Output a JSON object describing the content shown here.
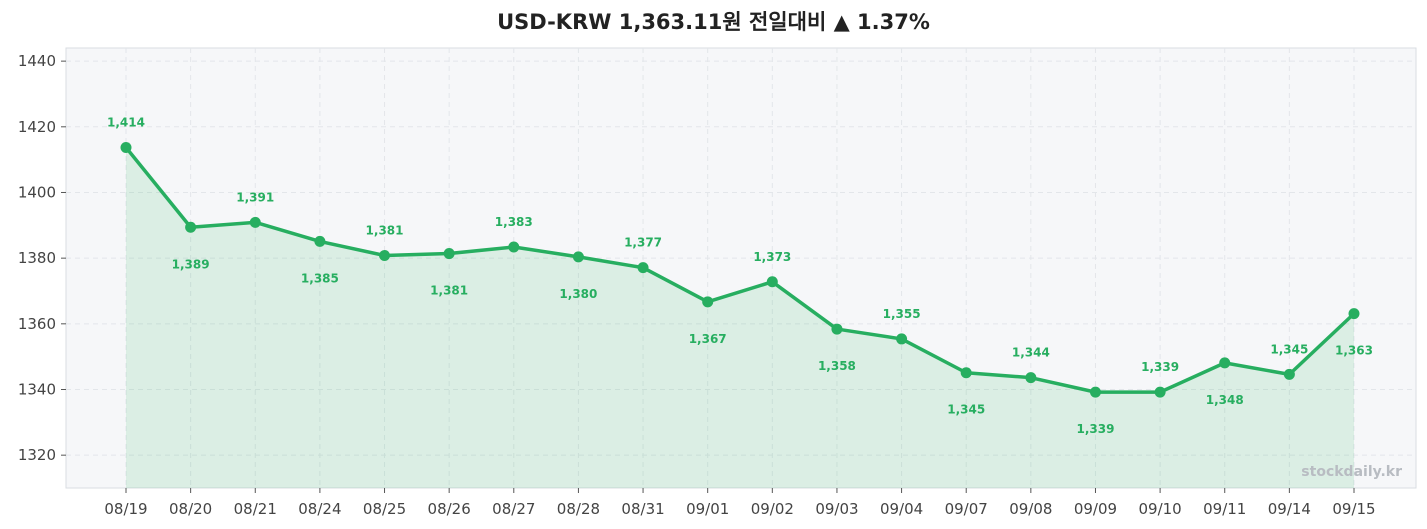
{
  "title": "USD-KRW  1,363.11원  전일대비 ▲ 1.37%",
  "watermark": "stockdaily.kr",
  "colors": {
    "line": "#27ae60",
    "fill": "#27ae60",
    "plot_bg": "#f6f7f9",
    "grid": "#e3e6ea"
  },
  "chart_data": {
    "type": "area",
    "title": "USD-KRW  1,363.11원  전일대비 ▲ 1.37%",
    "xlabel": "",
    "ylabel": "",
    "categories": [
      "08/19",
      "08/20",
      "08/21",
      "08/24",
      "08/25",
      "08/26",
      "08/27",
      "08/28",
      "08/31",
      "09/01",
      "09/02",
      "09/03",
      "09/04",
      "09/07",
      "09/08",
      "09/09",
      "09/10",
      "09/11",
      "09/14",
      "09/15"
    ],
    "series": [
      {
        "values": [
          1413.7,
          1389.4,
          1390.9,
          1385.1,
          1380.8,
          1381.4,
          1383.4,
          1380.4,
          1377.1,
          1366.7,
          1372.8,
          1358.4,
          1355.4,
          1345.1,
          1343.6,
          1339.2,
          1339.2,
          1348.1,
          1344.6,
          1363.1
        ]
      }
    ],
    "data_labels": [
      "1,414",
      "1,389",
      "1,391",
      "1,385",
      "1,381",
      "1,381",
      "1,383",
      "1,380",
      "1,377",
      "1,367",
      "1,373",
      "1,358",
      "1,355",
      "1,345",
      "1,344",
      "1,339",
      "1,339",
      "1,348",
      "1,345",
      "1,363"
    ],
    "label_positions": [
      "above",
      "below",
      "above",
      "below",
      "above",
      "below",
      "above",
      "below",
      "above",
      "below",
      "above",
      "below",
      "above",
      "below",
      "above",
      "below",
      "above",
      "below",
      "above",
      "below"
    ],
    "yticks": [
      1320,
      1340,
      1360,
      1380,
      1400,
      1420,
      1440
    ],
    "ylim": [
      1310,
      1444
    ],
    "grid": true,
    "legend": "none"
  }
}
